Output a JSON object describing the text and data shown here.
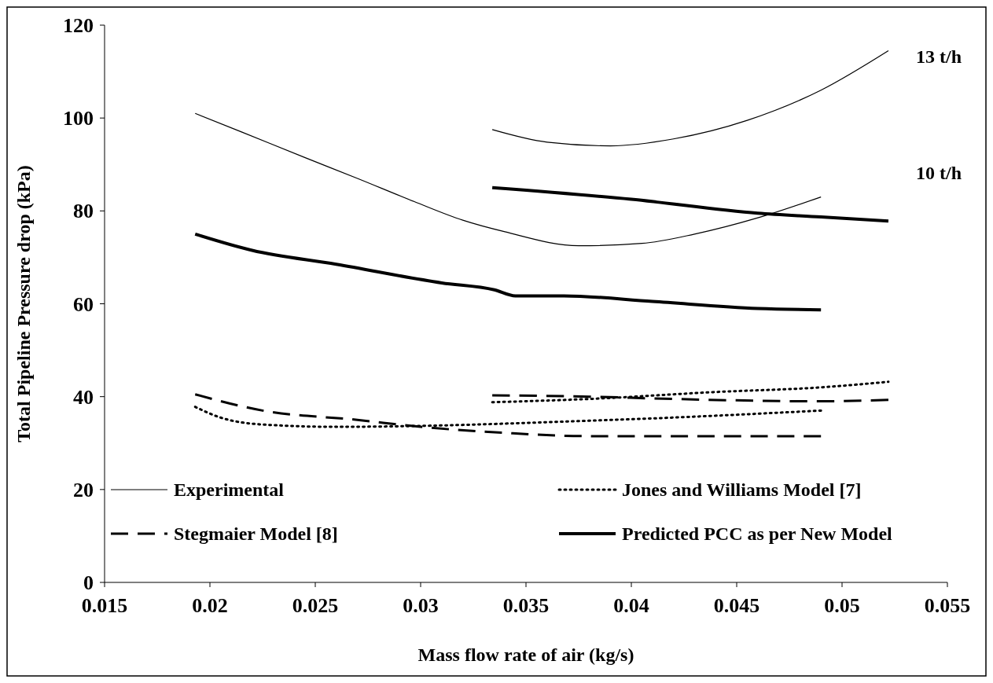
{
  "chart_data": {
    "type": "line",
    "xlabel": "Mass flow rate of air (kg/s)",
    "ylabel": "Total Pipeline Pressure drop (kPa)",
    "xlim": [
      0.015,
      0.055
    ],
    "xticks": [
      0.015,
      0.02,
      0.025,
      0.03,
      0.035,
      0.04,
      0.045,
      0.05,
      0.055
    ],
    "ylim": [
      0,
      120
    ],
    "yticks": [
      0,
      20,
      40,
      60,
      80,
      100,
      120
    ],
    "grid": false,
    "legend": "bottom",
    "annotations": [
      "13 t/h",
      "10 t/h"
    ],
    "series": [
      {
        "name": "Experimental",
        "color": "#000000",
        "line_style": "solid",
        "x": [
          0.0193,
          0.0215,
          0.0245,
          0.027,
          0.0297,
          0.032,
          0.034,
          0.0375,
          0.0405,
          0.043,
          0.046,
          0.049
        ],
        "values": [
          101,
          97,
          91.5,
          87,
          82,
          78,
          75.5,
          72.5,
          73,
          75,
          78.5,
          83
        ]
      },
      {
        "color": "#000000",
        "line_style": "solid",
        "x": [
          0.0334,
          0.036,
          0.039,
          0.042,
          0.0455,
          0.049,
          0.0522
        ],
        "values": [
          97.5,
          94.8,
          94,
          95.5,
          99.5,
          106,
          114.5
        ]
      },
      {
        "name": "Jones and Williams Model [7]",
        "color": "#000000",
        "line_style": "dotted",
        "x": [
          0.0193,
          0.0205,
          0.0225,
          0.026,
          0.031,
          0.036,
          0.042,
          0.049
        ],
        "values": [
          37.8,
          35.5,
          34,
          33.5,
          33.8,
          34.5,
          35.5,
          37
        ]
      },
      {
        "color": "#000000",
        "line_style": "dotted",
        "x": [
          0.0334,
          0.038,
          0.044,
          0.049,
          0.0522
        ],
        "values": [
          38.8,
          39.5,
          41,
          42,
          43.2
        ]
      },
      {
        "name": "Stegmaier Model [8]",
        "color": "#000000",
        "line_style": "dashed",
        "x": [
          0.0193,
          0.0225,
          0.027,
          0.03,
          0.034,
          0.038,
          0.049
        ],
        "values": [
          40.5,
          37,
          35,
          33.5,
          32.2,
          31.5,
          31.5
        ]
      },
      {
        "color": "#000000",
        "line_style": "dashed",
        "x": [
          0.0334,
          0.038,
          0.042,
          0.049,
          0.0522
        ],
        "values": [
          40.3,
          40,
          39.5,
          39,
          39.3
        ]
      },
      {
        "name": "Predicted PCC as per New Model",
        "color": "#000000",
        "line_style": "solid",
        "x": [
          0.0193,
          0.022,
          0.026,
          0.031,
          0.0335,
          0.0345,
          0.0368,
          0.041,
          0.046,
          0.049
        ],
        "values": [
          75,
          71.5,
          68.5,
          64.5,
          63,
          61.7,
          61.7,
          60.5,
          59,
          58.7
        ]
      },
      {
        "color": "#000000",
        "line_style": "solid",
        "x": [
          0.0334,
          0.04,
          0.046,
          0.049,
          0.0522
        ],
        "values": [
          85,
          82.5,
          79.5,
          78.7,
          77.8
        ]
      }
    ]
  }
}
